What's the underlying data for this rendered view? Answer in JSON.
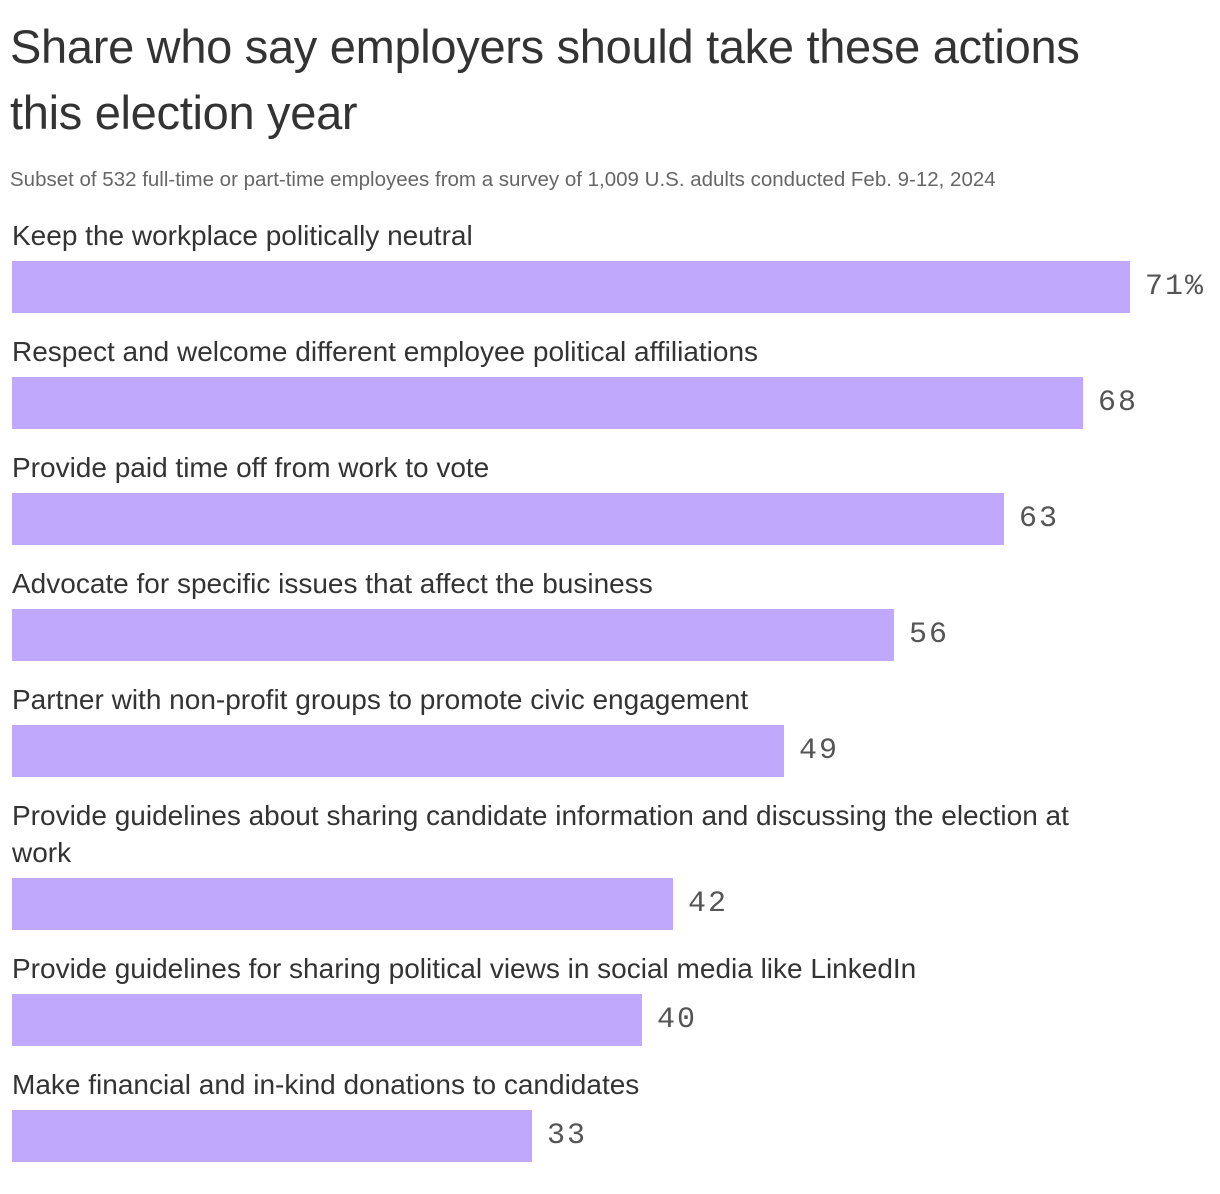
{
  "title": "Share who say employers should take these actions this election year",
  "subtitle": "Subset of 532 full-time or part-time employees from a survey of 1,009 U.S. adults conducted Feb. 9-12, 2024",
  "colors": {
    "bar": "#c0a9fc",
    "text": "#333333",
    "subtitle": "#666666",
    "value": "#555555"
  },
  "chart_data": {
    "type": "bar",
    "orientation": "horizontal",
    "title": "Share who say employers should take these actions this election year",
    "subtitle": "Subset of 532 full-time or part-time employees from a survey of 1,009 U.S. adults conducted Feb. 9-12, 2024",
    "unit": "%",
    "xlim": [
      0,
      71
    ],
    "grid": false,
    "categories": [
      "Keep the workplace politically neutral",
      "Respect and welcome different employee political affiliations",
      "Provide paid time off from work to vote",
      "Advocate for specific issues that affect the business",
      "Partner with non-profit groups to promote civic engagement",
      "Provide guidelines about sharing candidate information and discussing the election at work",
      "Provide guidelines for sharing political views in social media like LinkedIn",
      "Make financial and in-kind donations to candidates"
    ],
    "values": [
      71,
      68,
      63,
      56,
      49,
      42,
      40,
      33
    ],
    "value_labels": [
      "71%",
      "68",
      "63",
      "56",
      "49",
      "42",
      "40",
      "33"
    ]
  }
}
